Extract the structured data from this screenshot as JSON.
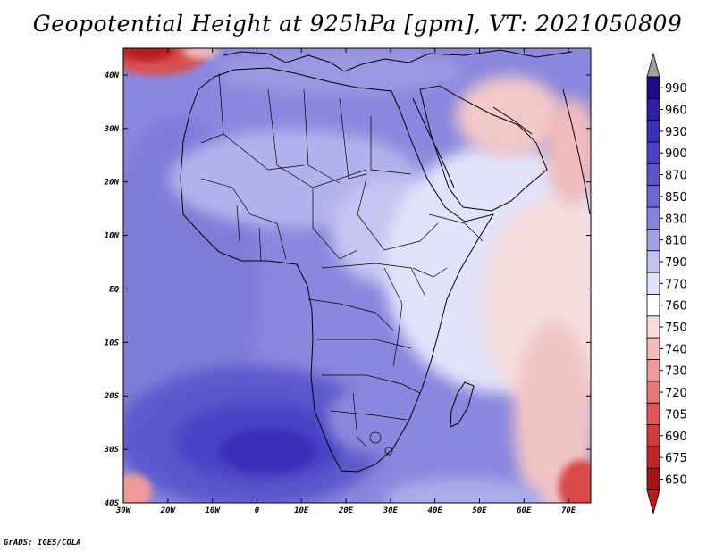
{
  "title": "Geopotential Height at 925hPa [gpm], VT: 2021050809",
  "credit": "GrADS: IGES/COLA",
  "map": {
    "projection": "lat-lon",
    "lon_range": [
      -30,
      75
    ],
    "lat_range": [
      -40,
      45
    ],
    "lon_ticks": [
      {
        "value": -30,
        "label": "30W"
      },
      {
        "value": -20,
        "label": "20W"
      },
      {
        "value": -10,
        "label": "10W"
      },
      {
        "value": 0,
        "label": "0"
      },
      {
        "value": 10,
        "label": "10E"
      },
      {
        "value": 20,
        "label": "20E"
      },
      {
        "value": 30,
        "label": "30E"
      },
      {
        "value": 40,
        "label": "40E"
      },
      {
        "value": 50,
        "label": "50E"
      },
      {
        "value": 60,
        "label": "60E"
      },
      {
        "value": 70,
        "label": "70E"
      }
    ],
    "lat_ticks": [
      {
        "value": 40,
        "label": "40N"
      },
      {
        "value": 30,
        "label": "30N"
      },
      {
        "value": 20,
        "label": "20N"
      },
      {
        "value": 10,
        "label": "10N"
      },
      {
        "value": 0,
        "label": "EQ"
      },
      {
        "value": -10,
        "label": "10S"
      },
      {
        "value": -20,
        "label": "20S"
      },
      {
        "value": -30,
        "label": "30S"
      },
      {
        "value": -40,
        "label": "40S"
      }
    ]
  },
  "colorbar": {
    "levels": [
      "990",
      "960",
      "930",
      "900",
      "870",
      "850",
      "830",
      "810",
      "790",
      "770",
      "760",
      "750",
      "740",
      "730",
      "720",
      "705",
      "690",
      "675",
      "650"
    ],
    "colors": [
      "#1e0c8c",
      "#2d1fa8",
      "#3b30b8",
      "#4a42c4",
      "#5a55cc",
      "#6c68d4",
      "#8683dc",
      "#a3a1e6",
      "#c2c1f0",
      "#e2e2fa",
      "#ffffff",
      "#fbdcdc",
      "#f5bcbc",
      "#ee9a9a",
      "#e67878",
      "#de5858",
      "#d23c3c",
      "#c02424",
      "#a81212"
    ],
    "top_arrow_color": "#a0a0a0",
    "bottom_arrow_color": "#c01818"
  }
}
